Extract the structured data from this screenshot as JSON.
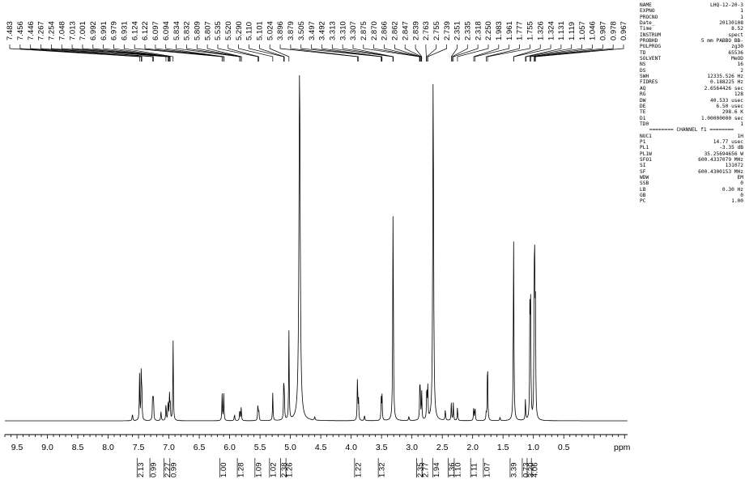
{
  "colors": {
    "ink": "#000000",
    "background": "#ffffff"
  },
  "chart_data": {
    "type": "line",
    "x_unit_label": "ppm",
    "x_range": [
      9.7,
      -0.55
    ],
    "x_ticks": [
      "9.5",
      "9.0",
      "8.5",
      "8.0",
      "7.5",
      "7.0",
      "6.5",
      "6.0",
      "5.5",
      "5.0",
      "4.5",
      "4.0",
      "3.5",
      "3.0",
      "2.5",
      "2.0",
      "1.5",
      "1.0",
      "0.5"
    ],
    "peak_labels": [
      "7.483",
      "7.456",
      "7.446",
      "7.267",
      "7.254",
      "7.048",
      "7.013",
      "7.001",
      "6.992",
      "6.991",
      "6.979",
      "6.931",
      "6.124",
      "6.122",
      "6.097",
      "6.094",
      "5.834",
      "5.832",
      "5.809",
      "5.807",
      "5.535",
      "5.520",
      "5.290",
      "5.110",
      "5.101",
      "5.024",
      "3.896",
      "3.879",
      "3.505",
      "3.497",
      "3.492",
      "3.313",
      "3.310",
      "3.307",
      "2.875",
      "2.870",
      "2.866",
      "2.862",
      "2.847",
      "2.839",
      "2.763",
      "2.755",
      "2.739",
      "2.351",
      "2.335",
      "2.318",
      "2.250",
      "1.983",
      "1.961",
      "1.777",
      "1.755",
      "1.326",
      "1.324",
      "1.131",
      "1.119",
      "1.057",
      "1.046",
      "0.987",
      "0.978",
      "0.967"
    ],
    "peak_ppm": [
      7.483,
      7.456,
      7.446,
      7.267,
      7.254,
      7.048,
      7.013,
      7.001,
      6.992,
      6.991,
      6.979,
      6.931,
      6.124,
      6.122,
      6.097,
      6.094,
      5.834,
      5.832,
      5.809,
      5.807,
      5.535,
      5.52,
      5.29,
      5.11,
      5.101,
      5.024,
      3.896,
      3.879,
      3.505,
      3.497,
      3.492,
      3.313,
      3.31,
      3.307,
      2.875,
      2.87,
      2.866,
      2.862,
      2.847,
      2.839,
      2.763,
      2.755,
      2.739,
      2.351,
      2.335,
      2.318,
      2.25,
      1.983,
      1.961,
      1.777,
      1.755,
      1.326,
      1.324,
      1.131,
      1.119,
      1.057,
      1.046,
      0.987,
      0.978,
      0.967
    ],
    "spectrum_peaks": [
      {
        "ppm": 7.6,
        "height": 0.02,
        "width": 0.006
      },
      {
        "ppm": 7.483,
        "height": 0.13,
        "width": 0.005
      },
      {
        "ppm": 7.456,
        "height": 0.13,
        "width": 0.005
      },
      {
        "ppm": 7.446,
        "height": 0.09,
        "width": 0.005
      },
      {
        "ppm": 7.267,
        "height": 0.08,
        "width": 0.005
      },
      {
        "ppm": 7.254,
        "height": 0.07,
        "width": 0.005
      },
      {
        "ppm": 7.13,
        "height": 0.025,
        "width": 0.006
      },
      {
        "ppm": 7.048,
        "height": 0.05,
        "width": 0.005
      },
      {
        "ppm": 7.013,
        "height": 0.06,
        "width": 0.005
      },
      {
        "ppm": 6.991,
        "height": 0.07,
        "width": 0.005
      },
      {
        "ppm": 6.979,
        "height": 0.05,
        "width": 0.005
      },
      {
        "ppm": 6.931,
        "height": 0.23,
        "width": 0.005
      },
      {
        "ppm": 6.124,
        "height": 0.075,
        "width": 0.005
      },
      {
        "ppm": 6.097,
        "height": 0.075,
        "width": 0.005
      },
      {
        "ppm": 5.92,
        "height": 0.018,
        "width": 0.006
      },
      {
        "ppm": 5.834,
        "height": 0.035,
        "width": 0.005
      },
      {
        "ppm": 5.809,
        "height": 0.04,
        "width": 0.005
      },
      {
        "ppm": 5.535,
        "height": 0.05,
        "width": 0.005
      },
      {
        "ppm": 5.52,
        "height": 0.03,
        "width": 0.005
      },
      {
        "ppm": 5.29,
        "height": 0.08,
        "width": 0.005
      },
      {
        "ppm": 5.11,
        "height": 0.09,
        "width": 0.005
      },
      {
        "ppm": 5.101,
        "height": 0.08,
        "width": 0.005
      },
      {
        "ppm": 5.024,
        "height": 0.25,
        "width": 0.005
      },
      {
        "ppm": 4.849,
        "height": 1.0,
        "width": 0.012
      },
      {
        "ppm": 4.6,
        "height": 0.01,
        "width": 0.006
      },
      {
        "ppm": 3.896,
        "height": 0.13,
        "width": 0.005
      },
      {
        "ppm": 3.879,
        "height": 0.06,
        "width": 0.005
      },
      {
        "ppm": 3.78,
        "height": 0.015,
        "width": 0.006
      },
      {
        "ppm": 3.505,
        "height": 0.06,
        "width": 0.005
      },
      {
        "ppm": 3.492,
        "height": 0.07,
        "width": 0.005
      },
      {
        "ppm": 3.31,
        "height": 0.61,
        "width": 0.006
      },
      {
        "ppm": 3.05,
        "height": 0.012,
        "width": 0.006
      },
      {
        "ppm": 2.87,
        "height": 0.09,
        "width": 0.005
      },
      {
        "ppm": 2.862,
        "height": 0.07,
        "width": 0.005
      },
      {
        "ppm": 2.839,
        "height": 0.08,
        "width": 0.005
      },
      {
        "ppm": 2.755,
        "height": 0.1,
        "width": 0.005
      },
      {
        "ppm": 2.739,
        "height": 0.09,
        "width": 0.005
      },
      {
        "ppm": 2.65,
        "height": 0.99,
        "width": 0.008
      },
      {
        "ppm": 2.45,
        "height": 0.03,
        "width": 0.006
      },
      {
        "ppm": 2.351,
        "height": 0.05,
        "width": 0.005
      },
      {
        "ppm": 2.318,
        "height": 0.05,
        "width": 0.005
      },
      {
        "ppm": 2.25,
        "height": 0.04,
        "width": 0.005
      },
      {
        "ppm": 1.983,
        "height": 0.04,
        "width": 0.005
      },
      {
        "ppm": 1.961,
        "height": 0.04,
        "width": 0.005
      },
      {
        "ppm": 1.777,
        "height": 0.02,
        "width": 0.005
      },
      {
        "ppm": 1.755,
        "height": 0.19,
        "width": 0.005
      },
      {
        "ppm": 1.55,
        "height": 0.01,
        "width": 0.006
      },
      {
        "ppm": 1.326,
        "height": 0.51,
        "width": 0.006
      },
      {
        "ppm": 1.131,
        "height": 0.06,
        "width": 0.005
      },
      {
        "ppm": 1.057,
        "height": 0.34,
        "width": 0.005
      },
      {
        "ppm": 1.046,
        "height": 0.3,
        "width": 0.005
      },
      {
        "ppm": 0.987,
        "height": 0.35,
        "width": 0.005
      },
      {
        "ppm": 0.978,
        "height": 0.36,
        "width": 0.005
      },
      {
        "ppm": 0.967,
        "height": 0.32,
        "width": 0.005
      }
    ],
    "integrals": [
      {
        "value": "2.13",
        "ppm": 7.47
      },
      {
        "value": "0.99",
        "ppm": 7.26
      },
      {
        "value": "2.27",
        "ppm": 7.03
      },
      {
        "value": "0.99",
        "ppm": 6.93
      },
      {
        "value": "1.00",
        "ppm": 6.11
      },
      {
        "value": "1.28",
        "ppm": 5.82
      },
      {
        "value": "1.09",
        "ppm": 5.53
      },
      {
        "value": "1.02",
        "ppm": 5.29
      },
      {
        "value": "2.38",
        "ppm": 5.11
      },
      {
        "value": "1.26",
        "ppm": 5.02
      },
      {
        "value": "1.22",
        "ppm": 3.89
      },
      {
        "value": "1.32",
        "ppm": 3.5
      },
      {
        "value": "2.35",
        "ppm": 2.87
      },
      {
        "value": "2.77",
        "ppm": 2.78
      },
      {
        "value": "1.94",
        "ppm": 2.6
      },
      {
        "value": "1.36",
        "ppm": 2.35
      },
      {
        "value": "1.10",
        "ppm": 2.25
      },
      {
        "value": "1.11",
        "ppm": 1.98
      },
      {
        "value": "1.07",
        "ppm": 1.77
      },
      {
        "value": "3.39",
        "ppm": 1.33
      },
      {
        "value": "0.73",
        "ppm": 1.13
      },
      {
        "value": "3.20",
        "ppm": 1.05
      },
      {
        "value": "4.06",
        "ppm": 0.98
      }
    ]
  },
  "acquisition_params": {
    "rows": [
      {
        "key": "NAME",
        "value": "LHQ-12-20-3"
      },
      {
        "key": "EXPNO",
        "value": "1"
      },
      {
        "key": "PROCNO",
        "value": "1"
      },
      {
        "key": "Date_",
        "value": "20130108"
      },
      {
        "key": "Time",
        "value": "8.52"
      },
      {
        "key": "INSTRUM",
        "value": "spect"
      },
      {
        "key": "PROBHD",
        "value": "5 mm PABBO BB-"
      },
      {
        "key": "PULPROG",
        "value": "zg30"
      },
      {
        "key": "TD",
        "value": "65536"
      },
      {
        "key": "SOLVENT",
        "value": "MeOD"
      },
      {
        "key": "NS",
        "value": "16"
      },
      {
        "key": "DS",
        "value": "2"
      },
      {
        "key": "SWH",
        "value": "12335.526 Hz"
      },
      {
        "key": "FIDRES",
        "value": "0.188225 Hz"
      },
      {
        "key": "AQ",
        "value": "2.6564426 sec"
      },
      {
        "key": "RG",
        "value": "128"
      },
      {
        "key": "DW",
        "value": "40.533 usec"
      },
      {
        "key": "DE",
        "value": "6.50 usec"
      },
      {
        "key": "TE",
        "value": "298.6 K"
      },
      {
        "key": "D1",
        "value": "1.00000000 sec"
      },
      {
        "key": "TD0",
        "value": "1"
      }
    ],
    "channel_header": "======== CHANNEL f1 ========",
    "channel_rows": [
      {
        "key": "NUC1",
        "value": "1H"
      },
      {
        "key": "P1",
        "value": "14.77 usec"
      },
      {
        "key": "PL1",
        "value": "-3.35 dB"
      },
      {
        "key": "PL1W",
        "value": "35.25694656 W"
      },
      {
        "key": "SFO1",
        "value": "600.4337079 MHz"
      },
      {
        "key": "SI",
        "value": "131072"
      },
      {
        "key": "SF",
        "value": "600.4300153 MHz"
      },
      {
        "key": "WDW",
        "value": "EM"
      },
      {
        "key": "SSB",
        "value": "0"
      },
      {
        "key": "LB",
        "value": "0.30 Hz"
      },
      {
        "key": "GB",
        "value": "0"
      },
      {
        "key": "PC",
        "value": "1.00"
      }
    ]
  }
}
